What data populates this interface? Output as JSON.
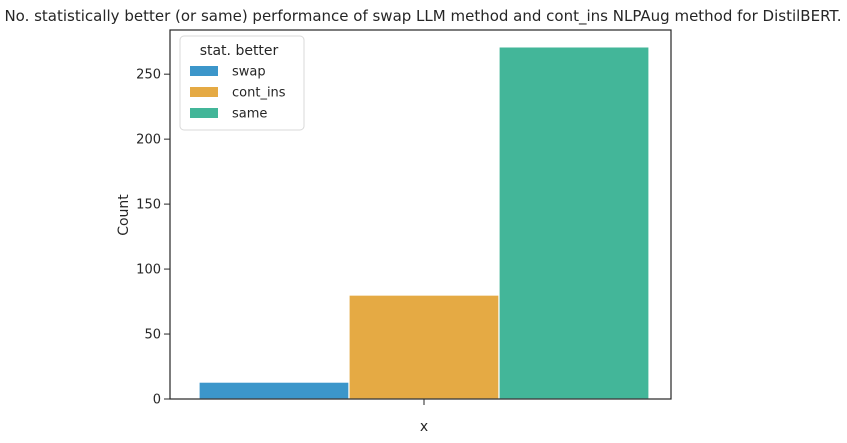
{
  "chart_data": {
    "type": "bar",
    "title": "No. statistically better (or same) performance of swap LLM method and cont_ins NLPAug method for DistilBERT.",
    "xlabel": "x",
    "ylabel": "Count",
    "ylim": [
      0,
      284
    ],
    "yticks": [
      0,
      50,
      100,
      150,
      200,
      250
    ],
    "ytick_labels": [
      "0",
      "50",
      "100",
      "150",
      "200",
      "250"
    ],
    "grid": false,
    "legend": {
      "title": "stat. better",
      "position": "top-left"
    },
    "series": [
      {
        "name": "swap",
        "value": 13,
        "color": "#3C96CA"
      },
      {
        "name": "cont_ins",
        "value": 80,
        "color": "#E5AA44"
      },
      {
        "name": "same",
        "value": 271,
        "color": "#43B699"
      }
    ]
  }
}
